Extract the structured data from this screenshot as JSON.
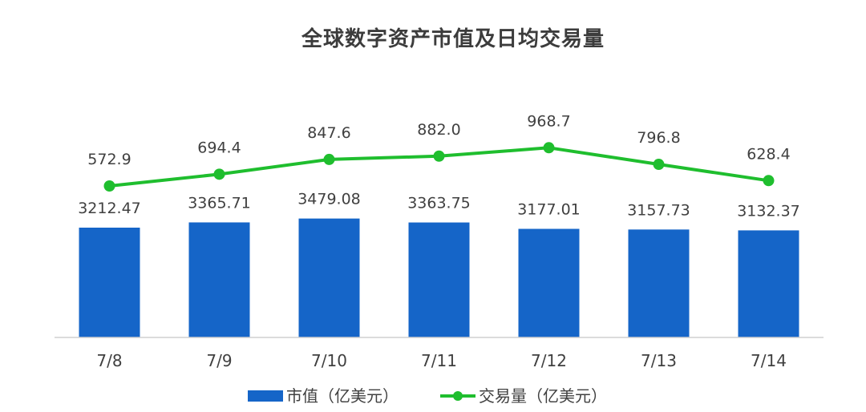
{
  "chart_data": {
    "type": "bar",
    "title": "全球数字资产市值及日均交易量",
    "categories": [
      "7/8",
      "7/9",
      "7/10",
      "7/11",
      "7/12",
      "7/13",
      "7/14"
    ],
    "series": [
      {
        "name": "市值（亿美元）",
        "type": "bar",
        "color": "#1565c8",
        "values": [
          3212.47,
          3365.71,
          3479.08,
          3363.75,
          3177.01,
          3157.73,
          3132.37
        ],
        "labels": [
          "3212.47",
          "3365.71",
          "3479.08",
          "3363.75",
          "3177.01",
          "3157.73",
          "3132.37"
        ]
      },
      {
        "name": "交易量（亿美元）",
        "type": "line",
        "color": "#1fbe2e",
        "values": [
          572.9,
          694.4,
          847.6,
          882.0,
          968.7,
          796.8,
          628.4
        ],
        "labels": [
          "572.9",
          "694.4",
          "847.6",
          "882.0",
          "968.7",
          "796.8",
          "628.4"
        ]
      }
    ],
    "legend": "bottom",
    "grid": false
  }
}
